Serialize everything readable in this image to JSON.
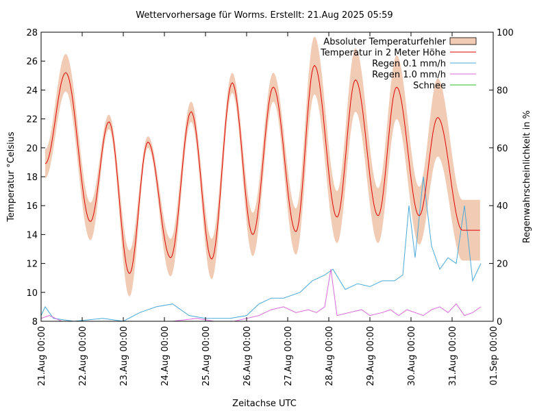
{
  "chart_data": {
    "type": "line",
    "title": "Wettervorhersage für Worms. Erstellt: 21.Aug 2025 05:59",
    "xlabel": "Zeitachse UTC",
    "ylabel": "Temperatur °Celsius",
    "y2label": "Regenwahrscheinlichkeit in %",
    "x_range_days": [
      0,
      11
    ],
    "ylim": [
      8,
      28
    ],
    "y2lim": [
      0,
      100
    ],
    "x_ticks": [
      "21.Aug 00:00",
      "22.Aug 00:00",
      "23.Aug 00:00",
      "24.Aug 00:00",
      "25.Aug 00:00",
      "26.Aug 00:00",
      "27.Aug 00:00",
      "28.Aug 00:00",
      "29.Aug 00:00",
      "30.Aug 00:00",
      "31.Aug 00:00",
      "01.Sep 00:00"
    ],
    "y_ticks": [
      8,
      10,
      12,
      14,
      16,
      18,
      20,
      22,
      24,
      26,
      28
    ],
    "y2_ticks": [
      0,
      20,
      40,
      60,
      80,
      100
    ],
    "grid": false,
    "legend_position": "top-right",
    "legend": [
      {
        "label": "Absoluter Temperaturfehler",
        "kind": "fill",
        "color": "#f2cbb5"
      },
      {
        "label": "Temperatur in 2 Meter Höhe",
        "kind": "line",
        "color": "#e00000"
      },
      {
        "label": "Regen 0.1 mm/h",
        "kind": "line",
        "color": "#4aa9d8"
      },
      {
        "label": "Regen 1.0 mm/h",
        "kind": "line",
        "color": "#d86ad8"
      },
      {
        "label": "Schnee",
        "kind": "line",
        "color": "#22c022"
      }
    ],
    "temperature_extremes": {
      "x_days": [
        0.1,
        0.6,
        1.2,
        1.65,
        2.15,
        2.6,
        3.15,
        3.65,
        4.15,
        4.65,
        5.15,
        5.65,
        6.2,
        6.65,
        7.2,
        7.65,
        8.2,
        8.65,
        9.2,
        9.65,
        10.25,
        10.68
      ],
      "temp": [
        18.9,
        25.2,
        14.9,
        21.8,
        11.3,
        20.4,
        12.4,
        22.5,
        12.3,
        24.5,
        14.0,
        24.2,
        14.2,
        25.7,
        15.2,
        24.7,
        15.3,
        24.2,
        15.3,
        22.1,
        14.3,
        14.3
      ],
      "error": [
        1.0,
        1.3,
        1.3,
        0.5,
        1.6,
        0.4,
        1.3,
        0.7,
        1.4,
        0.7,
        1.5,
        1.0,
        1.6,
        2.0,
        1.8,
        2.2,
        1.9,
        2.2,
        2.0,
        2.7,
        2.1,
        2.1
      ]
    },
    "rain_01": {
      "x_days": [
        0,
        0.1,
        0.3,
        0.8,
        1.5,
        2.0,
        2.4,
        2.8,
        3.2,
        3.6,
        4.0,
        4.6,
        5.0,
        5.3,
        5.6,
        5.9,
        6.3,
        6.6,
        6.9,
        7.1,
        7.4,
        7.7,
        8.0,
        8.3,
        8.6,
        8.8,
        8.95,
        9.1,
        9.3,
        9.5,
        9.7,
        9.9,
        10.1,
        10.3,
        10.5,
        10.7
      ],
      "pct": [
        2,
        5,
        1,
        0,
        1,
        0,
        3,
        5,
        6,
        2,
        1,
        1,
        2,
        6,
        8,
        8,
        10,
        14,
        16,
        18,
        11,
        13,
        12,
        14,
        14,
        16,
        40,
        22,
        50,
        26,
        18,
        22,
        20,
        40,
        14,
        20
      ]
    },
    "rain_10": {
      "x_days": [
        0,
        0.2,
        0.5,
        1.5,
        2.5,
        3.2,
        3.8,
        4.2,
        4.7,
        5.0,
        5.3,
        5.6,
        5.9,
        6.2,
        6.5,
        6.7,
        6.9,
        7.05,
        7.2,
        7.5,
        7.8,
        8.0,
        8.3,
        8.5,
        8.7,
        8.9,
        9.1,
        9.3,
        9.5,
        9.7,
        9.9,
        10.1,
        10.3,
        10.5,
        10.7
      ],
      "pct": [
        1,
        2,
        0,
        0,
        0,
        0,
        1,
        0,
        0,
        1,
        2,
        4,
        5,
        3,
        4,
        3,
        5,
        18,
        2,
        3,
        4,
        2,
        3,
        4,
        2,
        4,
        3,
        2,
        4,
        5,
        3,
        6,
        2,
        3,
        5
      ]
    },
    "snow": {
      "x_days": [
        0,
        11
      ],
      "pct": [
        0,
        0
      ]
    }
  }
}
